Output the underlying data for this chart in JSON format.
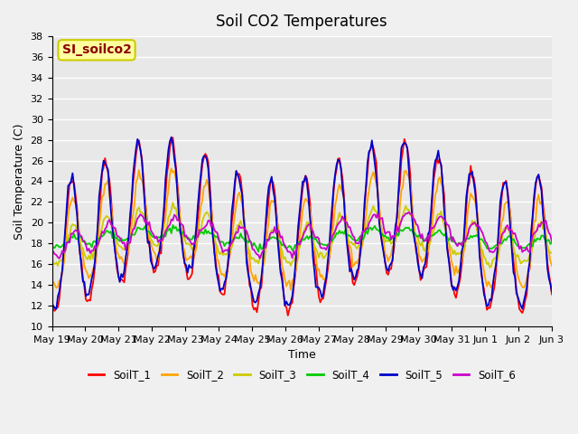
{
  "title": "Soil CO2 Temperatures",
  "xlabel": "Time",
  "ylabel": "Soil Temperature (C)",
  "ylim": [
    10,
    38
  ],
  "yticks": [
    10,
    12,
    14,
    16,
    18,
    20,
    22,
    24,
    26,
    28,
    30,
    32,
    34,
    36,
    38
  ],
  "annotation_text": "SI_soilco2",
  "annotation_color": "#8B0000",
  "annotation_bg": "#FFFFA0",
  "annotation_border": "#CCCC00",
  "line_colors": {
    "SoilT_1": "#FF0000",
    "SoilT_2": "#FFA500",
    "SoilT_3": "#CCCC00",
    "SoilT_4": "#00CC00",
    "SoilT_5": "#0000CC",
    "SoilT_6": "#CC00CC"
  },
  "legend_labels": [
    "SoilT_1",
    "SoilT_2",
    "SoilT_3",
    "SoilT_4",
    "SoilT_5",
    "SoilT_6"
  ],
  "bg_color": "#E8E8E8",
  "grid_color": "#FFFFFF",
  "xtick_dates": [
    "May 19",
    "May 20",
    "May 21",
    "May 22",
    "May 23",
    "May 24",
    "May 25",
    "May 26",
    "May 27",
    "May 28",
    "May 29",
    "May 30",
    "May 31",
    "Jun 1",
    "Jun 2",
    "Jun 3"
  ],
  "n_points": 340
}
